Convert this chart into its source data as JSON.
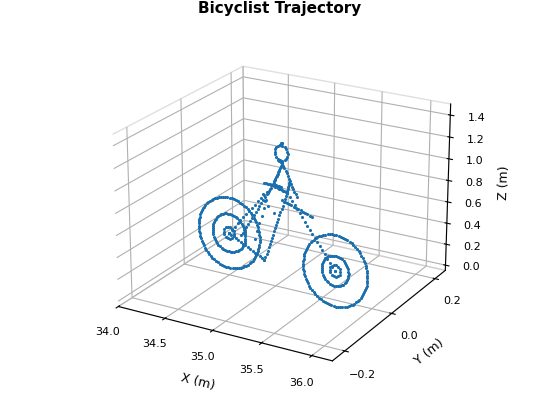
{
  "title": "Bicyclist Trajectory",
  "xlabel": "X (m)",
  "ylabel": "Y (m)",
  "zlabel": "Z (m)",
  "marker_color": "#1a6faf",
  "marker_size": 5,
  "xlim": [
    34,
    36.2
  ],
  "ylim": [
    -0.25,
    0.25
  ],
  "zlim": [
    -0.05,
    1.5
  ],
  "xticks": [
    34,
    34.5,
    35,
    35.5,
    36
  ],
  "yticks": [
    -0.2,
    0,
    0.2
  ],
  "zticks": [
    0,
    0.2,
    0.4,
    0.6,
    0.8,
    1.0,
    1.2,
    1.4
  ],
  "figsize": [
    5.6,
    4.2
  ],
  "dpi": 100,
  "elev": 22,
  "azim": -60
}
